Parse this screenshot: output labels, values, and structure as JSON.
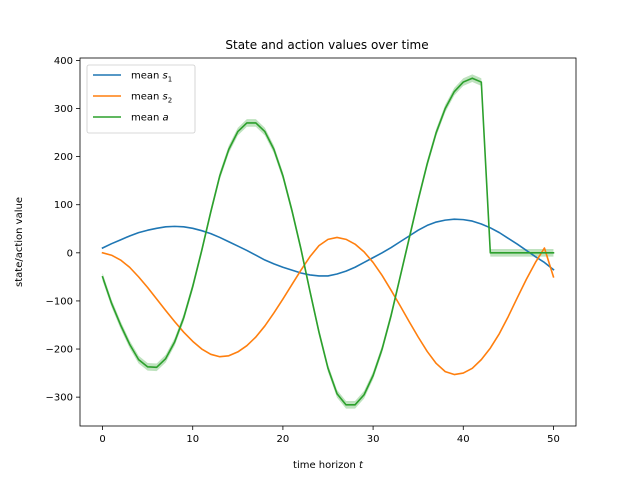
{
  "chart_data": {
    "type": "line",
    "title": "State and action values over time",
    "xlabel": "time horizon",
    "xlabel_var": "t",
    "ylabel": "state/action value",
    "xlim": [
      -2.5,
      52.5
    ],
    "ylim": [
      -360,
      405
    ],
    "xticks": [
      0,
      10,
      20,
      30,
      40,
      50
    ],
    "yticks": [
      -300,
      -200,
      -100,
      0,
      100,
      200,
      300,
      400
    ],
    "grid": false,
    "legend_position": "top-left",
    "x": [
      0,
      1,
      2,
      3,
      4,
      5,
      6,
      7,
      8,
      9,
      10,
      11,
      12,
      13,
      14,
      15,
      16,
      17,
      18,
      19,
      20,
      21,
      22,
      23,
      24,
      25,
      26,
      27,
      28,
      29,
      30,
      31,
      32,
      33,
      34,
      35,
      36,
      37,
      38,
      39,
      40,
      41,
      42,
      43,
      44,
      45,
      46,
      47,
      48,
      49,
      50
    ],
    "series": [
      {
        "name": "mean s",
        "subscript": "1",
        "color": "#1f77b4",
        "values": [
          10,
          19,
          27,
          35,
          42,
          47,
          51,
          54,
          55,
          54,
          51,
          46,
          40,
          32,
          23,
          14,
          5,
          -5,
          -15,
          -23,
          -30,
          -36,
          -42,
          -46,
          -48,
          -48,
          -44,
          -38,
          -30,
          -20,
          -10,
          0,
          11,
          23,
          35,
          47,
          57,
          64,
          68,
          70,
          69,
          66,
          60,
          52,
          42,
          30,
          18,
          5,
          -8,
          -20,
          -35
        ],
        "band": 0
      },
      {
        "name": "mean s",
        "subscript": "2",
        "color": "#ff7f0e",
        "values": [
          0,
          -5,
          -15,
          -30,
          -50,
          -72,
          -96,
          -120,
          -143,
          -165,
          -184,
          -200,
          -211,
          -216,
          -214,
          -206,
          -193,
          -175,
          -152,
          -125,
          -96,
          -66,
          -36,
          -8,
          15,
          28,
          32,
          28,
          18,
          2,
          -20,
          -47,
          -78,
          -110,
          -143,
          -175,
          -205,
          -230,
          -247,
          -253,
          -250,
          -240,
          -222,
          -198,
          -168,
          -132,
          -93,
          -55,
          -20,
          10,
          -50
        ],
        "band": 0
      },
      {
        "name": "mean a",
        "subscript": "",
        "color": "#2ca02c",
        "values": [
          -50,
          -105,
          -150,
          -190,
          -222,
          -237,
          -238,
          -220,
          -185,
          -135,
          -70,
          5,
          85,
          160,
          215,
          252,
          270,
          270,
          252,
          215,
          160,
          88,
          8,
          -80,
          -165,
          -240,
          -293,
          -316,
          -316,
          -295,
          -255,
          -200,
          -130,
          -50,
          30,
          110,
          185,
          250,
          300,
          335,
          355,
          363,
          355,
          0,
          0,
          0,
          0,
          0,
          0,
          0,
          0
        ],
        "band": 8
      }
    ]
  }
}
